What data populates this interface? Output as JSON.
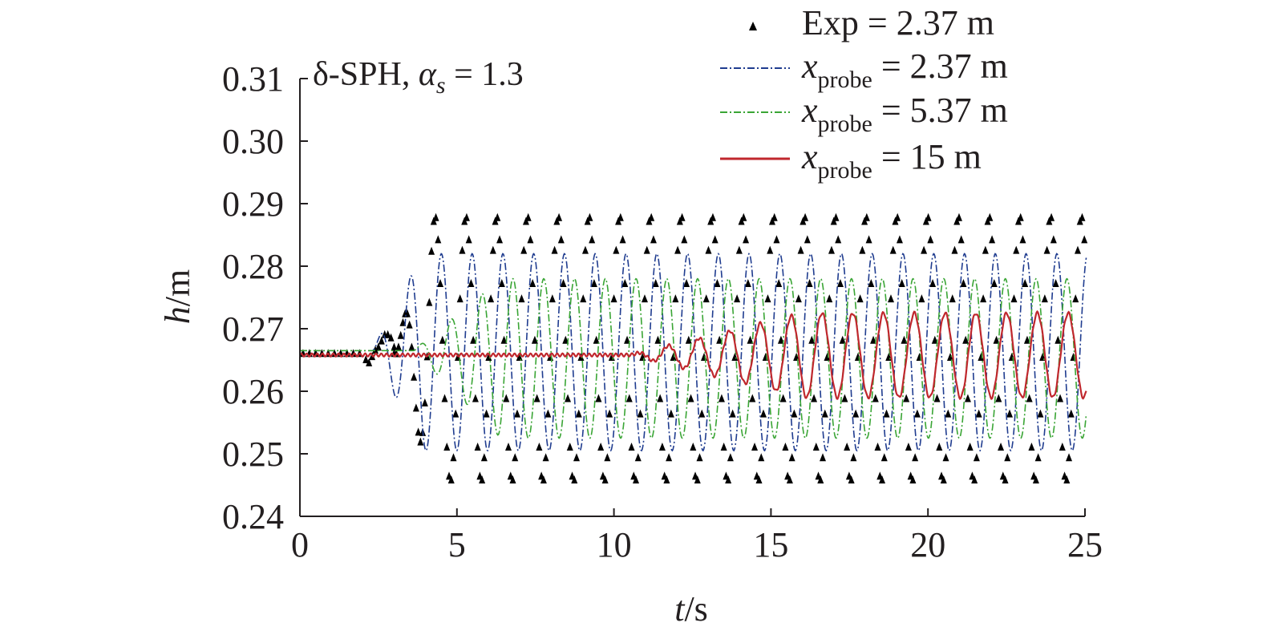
{
  "chart_data": {
    "type": "line",
    "annotation": {
      "prefix": "δ-SPH, ",
      "symbol": "α",
      "subscript": "s",
      "suffix": " = 1.3"
    },
    "xlabel": {
      "var": "t",
      "unit": "/s"
    },
    "ylabel": {
      "var": "h",
      "unit": "/m"
    },
    "xlim": [
      0,
      25
    ],
    "ylim": [
      0.24,
      0.31
    ],
    "xticks": [
      "0",
      "5",
      "10",
      "15",
      "20",
      "25"
    ],
    "yticks": [
      "0.24",
      "0.25",
      "0.26",
      "0.27",
      "0.28",
      "0.29",
      "0.30",
      "0.31"
    ],
    "grid": false,
    "legend_position": "top-right",
    "legend": [
      {
        "var": "",
        "sub": "",
        "text": "Exp",
        "value": " = 2.37 m",
        "color": "#000000",
        "style": "marker"
      },
      {
        "var": "x",
        "sub": "probe",
        "text": "",
        "value": " = 2.37 m",
        "color": "#1f3c8f",
        "style": "dashdot"
      },
      {
        "var": "x",
        "sub": "probe",
        "text": "",
        "value": " = 5.37 m",
        "color": "#3aa535",
        "style": "dashdot"
      },
      {
        "var": "x",
        "sub": "probe",
        "text": "",
        "value": " = 15 m",
        "color": "#c0272d",
        "style": "solid"
      }
    ],
    "series": [
      {
        "name": "Exp = 2.37 m",
        "kind": "scatter",
        "color": "#000000",
        "base": 0.266,
        "onset": 2.1,
        "period": 0.98,
        "max": 0.288,
        "min": 0.2455,
        "x": [
          0.1,
          0.3,
          0.5,
          0.7,
          0.9,
          1.1,
          1.3,
          1.5,
          1.7,
          1.9,
          2.1,
          2.2,
          2.3,
          2.4,
          2.5,
          2.6,
          2.7,
          2.8,
          2.9,
          3.0
        ],
        "y": [
          0.266,
          0.266,
          0.266,
          0.266,
          0.266,
          0.266,
          0.266,
          0.266,
          0.266,
          0.266,
          0.265,
          0.2645,
          0.2655,
          0.2665,
          0.267,
          0.268,
          0.269,
          0.269,
          0.2685,
          0.267
        ]
      },
      {
        "name": "x probe = 2.37 m",
        "kind": "line",
        "color": "#1f3c8f",
        "base": 0.2665,
        "onset": 2.3,
        "period": 0.98,
        "max": 0.282,
        "min": 0.2505
      },
      {
        "name": "x probe = 5.37 m",
        "kind": "line",
        "color": "#3aa535",
        "base": 0.2665,
        "onset": 3.6,
        "period": 0.98,
        "max": 0.278,
        "min": 0.2525
      },
      {
        "name": "x probe = 15 m",
        "kind": "line",
        "color": "#c0272d",
        "base": 0.2658,
        "onset": 10.5,
        "period": 0.98,
        "max": 0.2725,
        "min": 0.259
      }
    ]
  }
}
